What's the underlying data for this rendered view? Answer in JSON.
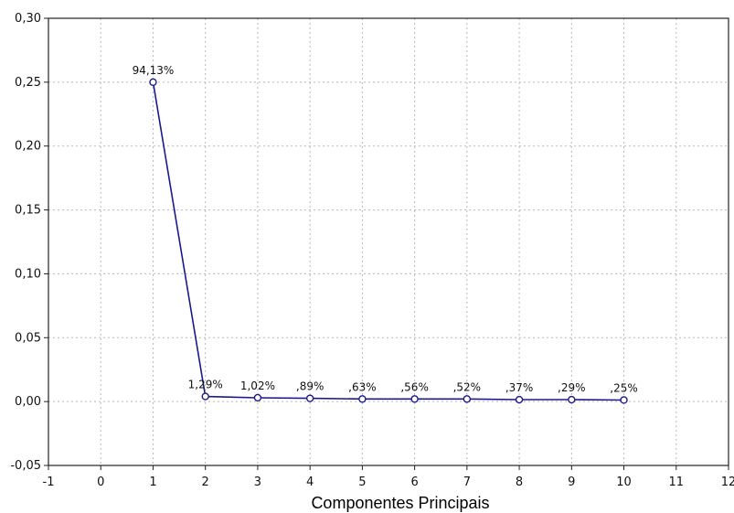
{
  "chart_data": {
    "type": "line",
    "title": "",
    "xlabel": "Componentes Principais",
    "ylabel": "",
    "xlim": [
      -1,
      12
    ],
    "ylim": [
      -0.05,
      0.3
    ],
    "x_ticks": [
      "-1",
      "0",
      "1",
      "2",
      "3",
      "4",
      "5",
      "6",
      "7",
      "8",
      "9",
      "10",
      "11",
      "12"
    ],
    "y_ticks": [
      "-0,05",
      "0,00",
      "0,05",
      "0,10",
      "0,15",
      "0,20",
      "0,25",
      "0,30"
    ],
    "grid": true,
    "series": [
      {
        "color": "#1a1a8c",
        "x": [
          1,
          2,
          3,
          4,
          5,
          6,
          7,
          8,
          9,
          10
        ],
        "y": [
          0.25,
          0.004,
          0.003,
          0.0025,
          0.002,
          0.002,
          0.002,
          0.0015,
          0.0015,
          0.0012
        ],
        "labels": [
          "94,13%",
          "1,29%",
          "1,02%",
          ",89%",
          ",63%",
          ",56%",
          ",52%",
          ",37%",
          ",29%",
          ",25%"
        ]
      }
    ]
  }
}
